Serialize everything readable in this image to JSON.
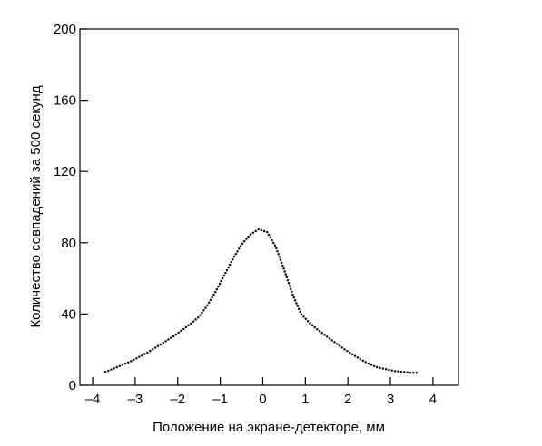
{
  "chart_data": {
    "type": "scatter",
    "title": "",
    "xlabel": "Положение на экране-детекторе, мм",
    "ylabel": "Количество совпадений за 500 секунд",
    "xlim": [
      -4.3,
      4.6
    ],
    "ylim": [
      0,
      200
    ],
    "x_ticks": [
      -4,
      -3,
      -2,
      -1,
      0,
      1,
      2,
      3,
      4
    ],
    "x_tick_labels": [
      "–4",
      "–3",
      "–2",
      "–1",
      "0",
      "1",
      "2",
      "3",
      "4"
    ],
    "y_ticks": [
      0,
      40,
      80,
      120,
      160,
      200
    ],
    "y_tick_labels": [
      "0",
      "40",
      "80",
      "120",
      "160",
      "200"
    ],
    "grid": false,
    "legend": "none",
    "series": [
      {
        "color": "#111111",
        "marker": "dot",
        "x": [
          -3.7,
          -3.5,
          -3.3,
          -3.1,
          -2.9,
          -2.7,
          -2.5,
          -2.3,
          -2.1,
          -1.9,
          -1.7,
          -1.5,
          -1.3,
          -1.1,
          -0.9,
          -0.7,
          -0.5,
          -0.3,
          -0.1,
          0.1,
          0.3,
          0.5,
          0.7,
          0.9,
          1.1,
          1.3,
          1.5,
          1.7,
          1.9,
          2.1,
          2.3,
          2.5,
          2.7,
          2.9,
          3.1,
          3.3,
          3.5,
          3.65
        ],
        "y": [
          7.5,
          9.5,
          11.5,
          13.5,
          16,
          18.5,
          21.5,
          24.5,
          27.5,
          31,
          34.5,
          38.5,
          45,
          53,
          62,
          71,
          79,
          84.5,
          87.5,
          86,
          78,
          65,
          51,
          40,
          35,
          31,
          27.5,
          24,
          20.5,
          17.5,
          14.5,
          12,
          10,
          9,
          8,
          7.5,
          7,
          7
        ]
      }
    ]
  }
}
